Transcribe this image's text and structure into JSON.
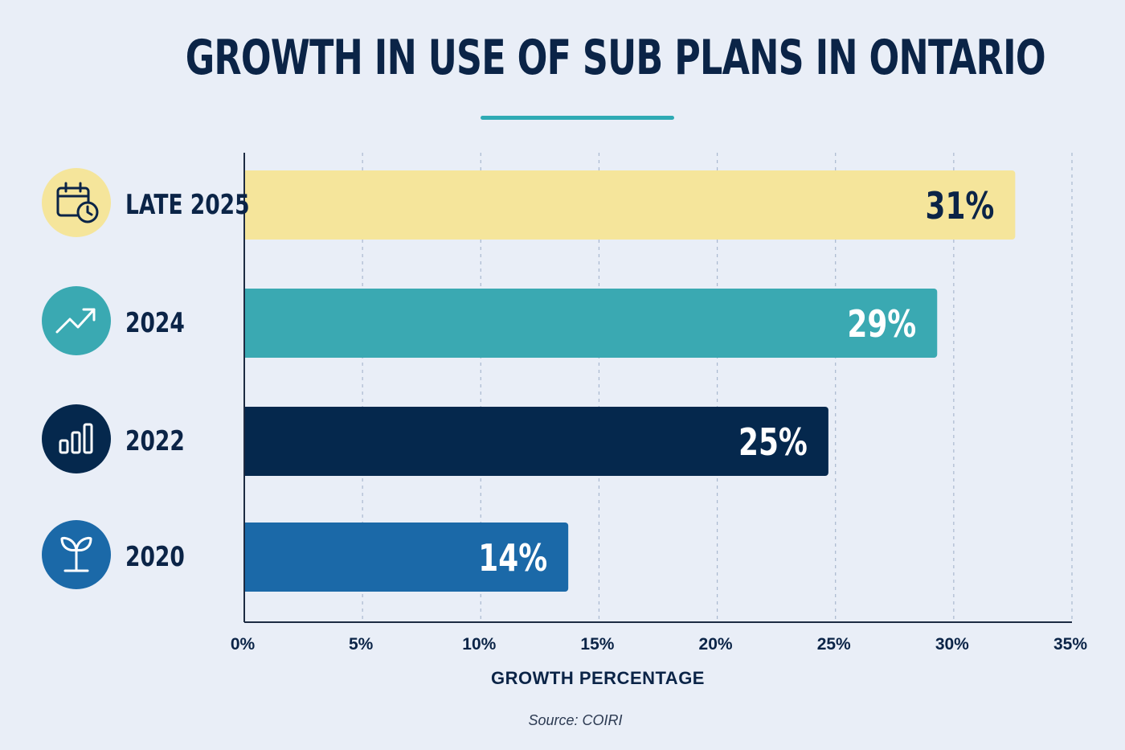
{
  "title": "GROWTH IN USE OF SUB PLANS IN ONTARIO",
  "source": "Source: COIRI",
  "colors": {
    "background": "#e9eef7",
    "text": "#0b2447",
    "accent": "#2eaab4"
  },
  "chart_data": {
    "type": "bar",
    "orientation": "horizontal",
    "categories": [
      "LATE 2025",
      "2024",
      "2022",
      "2020"
    ],
    "values": [
      31,
      29,
      25,
      14
    ],
    "value_labels": [
      "31%",
      "29%",
      "25%",
      "14%"
    ],
    "bar_colors": [
      "#f5e59b",
      "#3aa9b2",
      "#05284d",
      "#1b69a8"
    ],
    "label_colors": [
      "#0b2447",
      "#ffffff",
      "#ffffff",
      "#ffffff"
    ],
    "icons": [
      "calendar-clock-icon",
      "trending-up-icon",
      "bar-chart-icon",
      "sprout-icon"
    ],
    "icon_bg_colors": [
      "#f5e59b",
      "#3aa9b2",
      "#05284d",
      "#1b69a8"
    ],
    "xlabel": "GROWTH PERCENTAGE",
    "xlim": [
      0,
      35
    ],
    "xticks": [
      "0%",
      "5%",
      "10%",
      "15%",
      "20%",
      "25%",
      "30%",
      "35%"
    ],
    "grid": "vertical dashed"
  }
}
